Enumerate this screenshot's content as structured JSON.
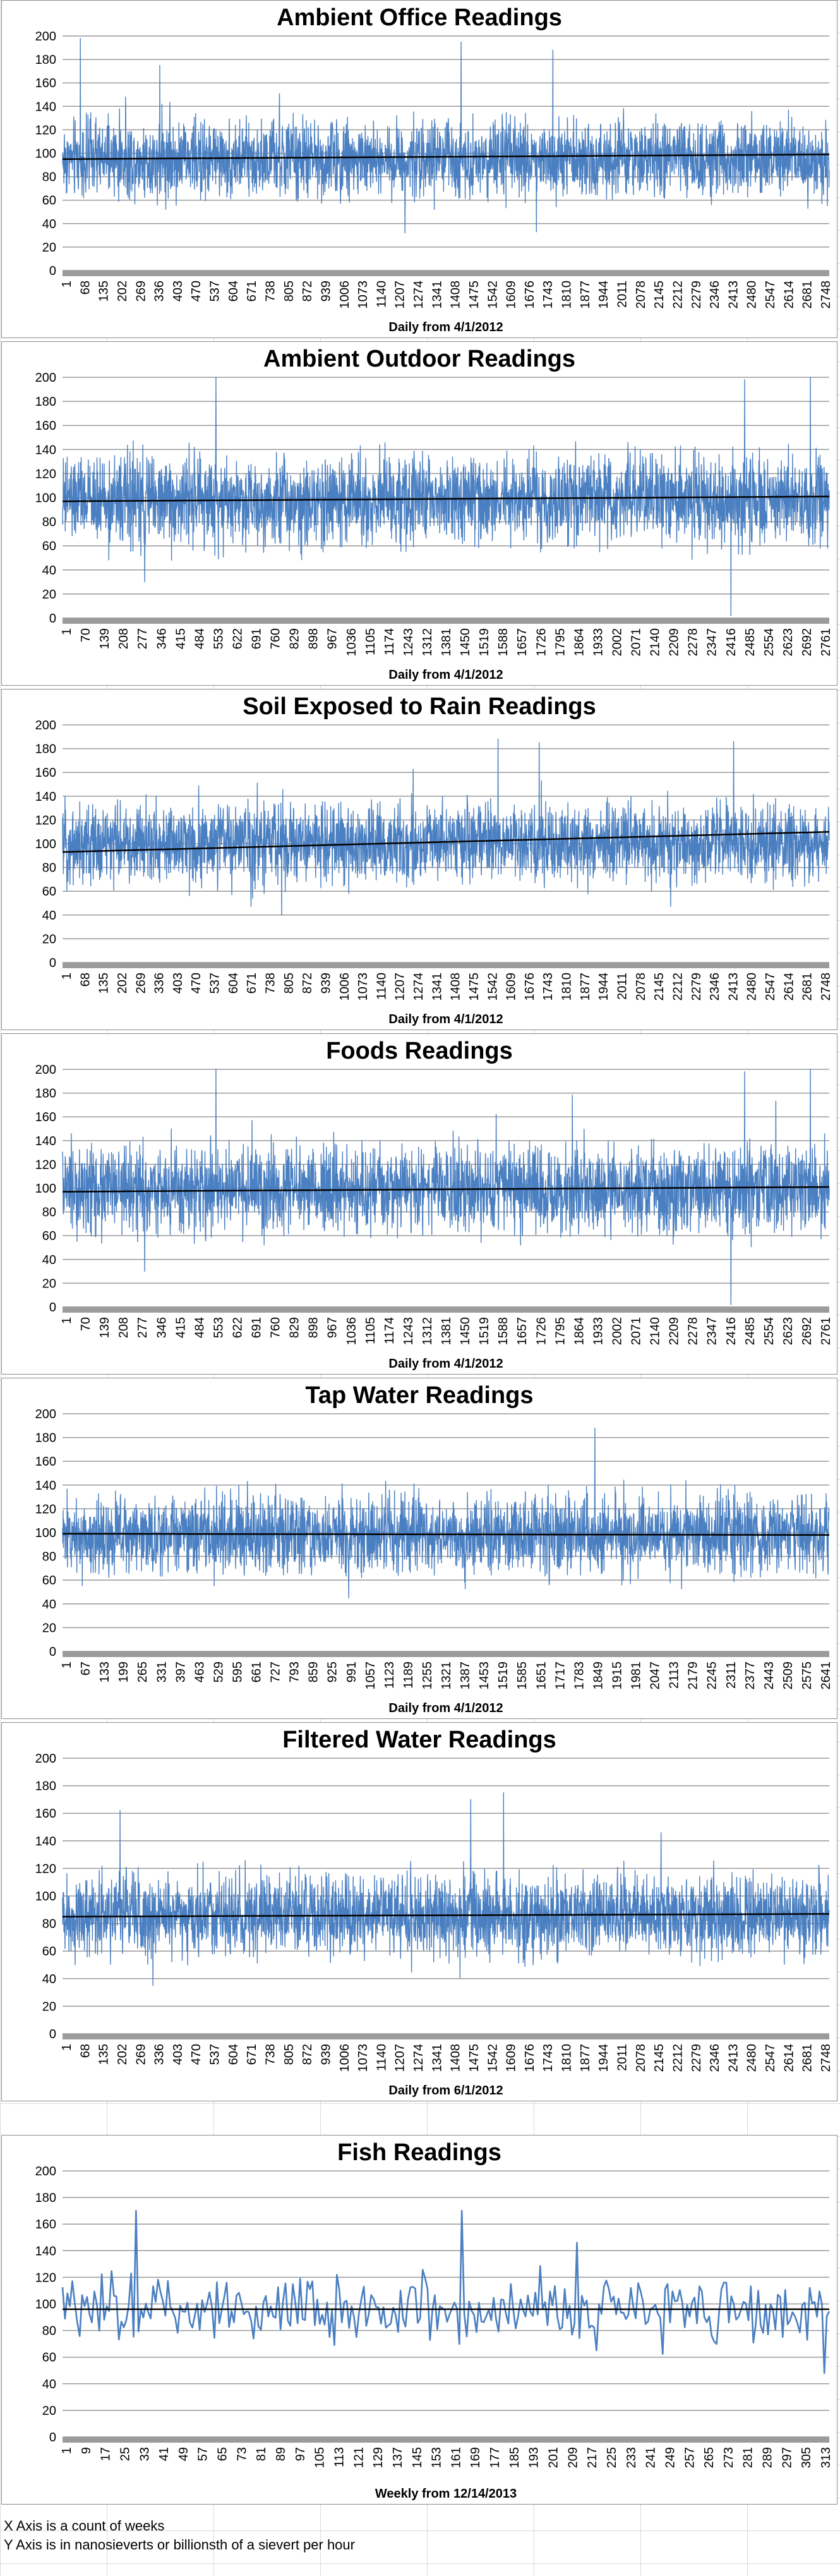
{
  "sheet": {
    "footnotes": [
      "X Axis is a count of weeks",
      "Y Axis is in nanosieverts or billionsth of a sievert per hour"
    ]
  },
  "chart_data": [
    {
      "type": "line",
      "title": "Ambient Office Readings",
      "xlabel": "Daily from 4/1/2012",
      "ylabel": "",
      "ylim": [
        0,
        200
      ],
      "yticks": [
        0,
        20,
        40,
        60,
        80,
        100,
        120,
        140,
        160,
        180,
        200
      ],
      "xtick_labels": [
        "1",
        "68",
        "135",
        "202",
        "269",
        "336",
        "403",
        "470",
        "537",
        "604",
        "671",
        "738",
        "805",
        "872",
        "939",
        "1006",
        "1073",
        "1140",
        "1207",
        "1274",
        "1341",
        "1408",
        "1475",
        "1542",
        "1609",
        "1676",
        "1743",
        "1810",
        "1877",
        "1944",
        "2011",
        "2078",
        "2145",
        "2212",
        "2279",
        "2346",
        "2413",
        "2480",
        "2547",
        "2614",
        "2681",
        "2748"
      ],
      "x_count": 2800,
      "series": [
        {
          "mean": 95,
          "spread": 20,
          "color": "#4a7fc1"
        }
      ],
      "trendline": {
        "start": 95,
        "end": 99
      },
      "peaks": [
        [
          65,
          198
        ],
        [
          1455,
          195
        ],
        [
          1790,
          188
        ],
        [
          355,
          175
        ],
        [
          1730,
          33
        ],
        [
          1250,
          32
        ]
      ],
      "grid": "horizontal",
      "legend": "none"
    },
    {
      "type": "line",
      "title": "Ambient Outdoor Readings",
      "xlabel": "Daily from 4/1/2012",
      "ylabel": "",
      "ylim": [
        0,
        200
      ],
      "yticks": [
        0,
        20,
        40,
        60,
        80,
        100,
        120,
        140,
        160,
        180,
        200
      ],
      "xtick_labels": [
        "1",
        "70",
        "139",
        "208",
        "277",
        "346",
        "415",
        "484",
        "553",
        "622",
        "691",
        "760",
        "829",
        "898",
        "967",
        "1036",
        "1105",
        "1174",
        "1243",
        "1312",
        "1381",
        "1450",
        "1519",
        "1588",
        "1657",
        "1726",
        "1795",
        "1864",
        "1933",
        "2002",
        "2071",
        "2140",
        "2209",
        "2278",
        "2347",
        "2416",
        "2485",
        "2554",
        "2623",
        "2692",
        "2761"
      ],
      "x_count": 2800,
      "series": [
        {
          "mean": 98,
          "spread": 22,
          "color": "#4a7fc1"
        }
      ],
      "trendline": {
        "start": 97,
        "end": 101
      },
      "peaks": [
        [
          560,
          200
        ],
        [
          2490,
          198
        ],
        [
          2730,
          200
        ],
        [
          2440,
          2
        ],
        [
          300,
          30
        ]
      ],
      "grid": "horizontal",
      "legend": "none"
    },
    {
      "type": "line",
      "title": "Soil Exposed to Rain Readings",
      "xlabel": "Daily from 4/1/2012",
      "ylabel": "",
      "ylim": [
        0,
        200
      ],
      "yticks": [
        0,
        20,
        40,
        60,
        80,
        100,
        120,
        140,
        160,
        180,
        200
      ],
      "xtick_labels": [
        "1",
        "68",
        "135",
        "202",
        "269",
        "336",
        "403",
        "470",
        "537",
        "604",
        "671",
        "738",
        "805",
        "872",
        "939",
        "1006",
        "1073",
        "1140",
        "1207",
        "1274",
        "1341",
        "1408",
        "1475",
        "1542",
        "1609",
        "1676",
        "1743",
        "1810",
        "1877",
        "1944",
        "2011",
        "2078",
        "2145",
        "2212",
        "2279",
        "2346",
        "2413",
        "2480",
        "2547",
        "2614",
        "2681",
        "2748"
      ],
      "x_count": 2800,
      "series": [
        {
          "mean": 100,
          "spread": 20,
          "color": "#4a7fc1"
        }
      ],
      "trendline": {
        "start": 93,
        "end": 110
      },
      "peaks": [
        [
          1590,
          188
        ],
        [
          1740,
          185
        ],
        [
          2450,
          186
        ],
        [
          800,
          40
        ]
      ],
      "grid": "horizontal",
      "legend": "none"
    },
    {
      "type": "line",
      "title": "Foods Readings",
      "xlabel": "Daily from 4/1/2012",
      "ylabel": "",
      "ylim": [
        0,
        200
      ],
      "yticks": [
        0,
        20,
        40,
        60,
        80,
        100,
        120,
        140,
        160,
        180,
        200
      ],
      "xtick_labels": [
        "1",
        "70",
        "139",
        "208",
        "277",
        "346",
        "415",
        "484",
        "553",
        "622",
        "691",
        "760",
        "829",
        "898",
        "967",
        "1036",
        "1105",
        "1174",
        "1243",
        "1312",
        "1381",
        "1450",
        "1519",
        "1588",
        "1657",
        "1726",
        "1795",
        "1864",
        "1933",
        "2002",
        "2071",
        "2140",
        "2209",
        "2278",
        "2347",
        "2416",
        "2485",
        "2554",
        "2623",
        "2692",
        "2761"
      ],
      "x_count": 2800,
      "series": [
        {
          "mean": 98,
          "spread": 22,
          "color": "#4a7fc1"
        }
      ],
      "trendline": {
        "start": 97,
        "end": 101
      },
      "peaks": [
        [
          560,
          200
        ],
        [
          2490,
          198
        ],
        [
          2730,
          200
        ],
        [
          2440,
          2
        ],
        [
          300,
          30
        ]
      ],
      "grid": "horizontal",
      "legend": "none"
    },
    {
      "type": "line",
      "title": "Tap Water Readings",
      "xlabel": "Daily from 4/1/2012",
      "ylabel": "",
      "ylim": [
        0,
        200
      ],
      "yticks": [
        0,
        20,
        40,
        60,
        80,
        100,
        120,
        140,
        160,
        180,
        200
      ],
      "xtick_labels": [
        "1",
        "67",
        "133",
        "199",
        "265",
        "331",
        "397",
        "463",
        "529",
        "595",
        "661",
        "727",
        "793",
        "859",
        "925",
        "991",
        "1057",
        "1123",
        "1189",
        "1255",
        "1321",
        "1387",
        "1453",
        "1519",
        "1585",
        "1651",
        "1717",
        "1783",
        "1849",
        "1915",
        "1981",
        "2047",
        "2113",
        "2179",
        "2245",
        "2311",
        "2377",
        "2443",
        "2509",
        "2575",
        "2641"
      ],
      "x_count": 2680,
      "series": [
        {
          "mean": 98,
          "spread": 20,
          "color": "#4a7fc1"
        }
      ],
      "trendline": {
        "start": 99,
        "end": 98
      },
      "peaks": [
        [
          1860,
          188
        ],
        [
          1000,
          45
        ]
      ],
      "grid": "horizontal",
      "legend": "none"
    },
    {
      "type": "line",
      "title": "Filtered Water Readings",
      "xlabel": "Daily from 6/1/2012",
      "ylabel": "",
      "ylim": [
        0,
        200
      ],
      "yticks": [
        0,
        20,
        40,
        60,
        80,
        100,
        120,
        140,
        160,
        180,
        200
      ],
      "xtick_labels": [
        "1",
        "68",
        "135",
        "202",
        "269",
        "336",
        "403",
        "470",
        "537",
        "604",
        "671",
        "738",
        "805",
        "872",
        "939",
        "1006",
        "1073",
        "1140",
        "1207",
        "1274",
        "1341",
        "1408",
        "1475",
        "1542",
        "1609",
        "1676",
        "1743",
        "1810",
        "1877",
        "1944",
        "2011",
        "2078",
        "2145",
        "2212",
        "2279",
        "2346",
        "2413",
        "2480",
        "2547",
        "2614",
        "2681",
        "2748"
      ],
      "x_count": 2800,
      "series": [
        {
          "mean": 86,
          "spread": 18,
          "color": "#4a7fc1"
        }
      ],
      "trendline": {
        "start": 85,
        "end": 87
      },
      "peaks": [
        [
          1610,
          175
        ],
        [
          1490,
          170
        ],
        [
          210,
          162
        ],
        [
          330,
          35
        ]
      ],
      "grid": "horizontal",
      "legend": "none"
    },
    {
      "type": "line",
      "title": "Fish Readings",
      "xlabel": "Weekly from 12/14/2013",
      "ylabel": "",
      "ylim": [
        0,
        200
      ],
      "yticks": [
        0,
        20,
        40,
        60,
        80,
        100,
        120,
        140,
        160,
        180,
        200
      ],
      "xtick_labels": [
        "1",
        "9",
        "17",
        "25",
        "33",
        "41",
        "49",
        "57",
        "65",
        "73",
        "81",
        "89",
        "97",
        "105",
        "113",
        "121",
        "129",
        "137",
        "145",
        "153",
        "161",
        "169",
        "177",
        "185",
        "193",
        "201",
        "209",
        "217",
        "225",
        "233",
        "241",
        "249",
        "257",
        "265",
        "273",
        "281",
        "289",
        "297",
        "305",
        "313"
      ],
      "x_count": 314,
      "series": [
        {
          "mean": 95,
          "spread": 16,
          "color": "#4a7fc1"
        }
      ],
      "trendline": {
        "start": 96,
        "end": 96
      },
      "peaks": [
        [
          30,
          170
        ],
        [
          163,
          170
        ],
        [
          210,
          146
        ],
        [
          311,
          48
        ]
      ],
      "grid": "horizontal",
      "legend": "none"
    }
  ]
}
